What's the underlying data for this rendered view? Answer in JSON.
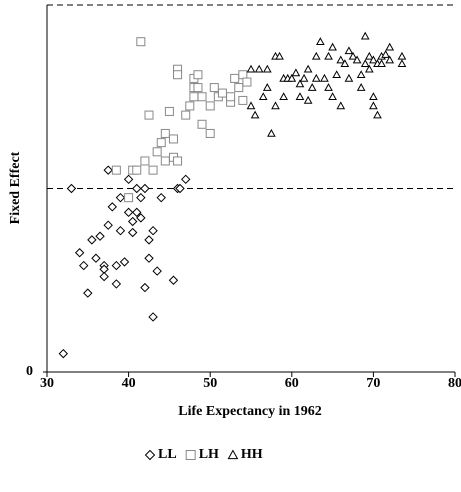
{
  "chart_data": {
    "type": "scatter",
    "xlabel": "Life Expectancy in 1962",
    "ylabel": "Fixed Effect",
    "xlim": [
      30,
      80
    ],
    "xticks": [
      30,
      40,
      50,
      60,
      70,
      80
    ],
    "ylim": [
      0,
      2
    ],
    "yticks": [
      0
    ],
    "hlines": [
      1,
      2
    ],
    "series": [
      {
        "name": "LL",
        "marker": "diamond",
        "color": "#000000",
        "x": [
          32,
          33,
          34,
          34.5,
          35,
          35.5,
          36,
          36.5,
          37,
          37,
          37,
          37.5,
          37.5,
          38,
          38.5,
          38.5,
          39,
          39,
          39.5,
          40,
          40,
          40.5,
          40.5,
          41,
          41,
          41.5,
          41.5,
          42,
          42,
          42.5,
          42.5,
          43,
          43,
          43.5,
          44,
          45.5,
          46,
          46.3,
          47
        ],
        "values": [
          0.1,
          1.0,
          0.65,
          0.58,
          0.43,
          0.72,
          0.62,
          0.74,
          0.58,
          0.56,
          0.52,
          0.8,
          1.1,
          0.9,
          0.58,
          0.48,
          0.77,
          0.95,
          0.6,
          0.87,
          1.05,
          0.82,
          0.76,
          0.87,
          1.0,
          0.84,
          0.95,
          0.46,
          1.0,
          0.72,
          0.62,
          0.3,
          0.77,
          0.55,
          0.95,
          0.5,
          1.0,
          1.0,
          1.05
        ]
      },
      {
        "name": "LH",
        "marker": "square",
        "color": "#888888",
        "x": [
          38.5,
          40,
          40.5,
          41,
          41.5,
          42,
          42.5,
          43,
          43.5,
          44,
          44.5,
          44.5,
          45,
          45.5,
          45.5,
          46,
          46,
          46,
          47,
          47.5,
          48,
          48,
          48,
          48.5,
          48.5,
          49,
          49,
          50,
          50,
          50.5,
          51,
          51.5,
          52.5,
          52.5,
          53,
          53.5,
          54,
          54,
          54.5
        ],
        "values": [
          1.1,
          0.95,
          1.1,
          1.1,
          1.8,
          1.15,
          1.4,
          1.1,
          1.2,
          1.25,
          1.3,
          1.15,
          1.42,
          1.17,
          1.27,
          1.65,
          1.62,
          1.15,
          1.4,
          1.45,
          1.55,
          1.6,
          1.5,
          1.62,
          1.55,
          1.5,
          1.35,
          1.3,
          1.45,
          1.55,
          1.5,
          1.52,
          1.47,
          1.5,
          1.6,
          1.55,
          1.48,
          1.62,
          1.58
        ]
      },
      {
        "name": "HH",
        "marker": "triangle",
        "color": "#000000",
        "x": [
          55,
          55,
          55.5,
          56,
          56.5,
          57,
          57,
          57.5,
          58,
          58,
          58.5,
          59,
          59,
          59.5,
          60,
          60.5,
          61,
          61,
          61.5,
          62,
          62,
          62.5,
          63,
          63,
          63.5,
          64,
          64.5,
          64.5,
          65,
          65,
          65.5,
          66,
          66,
          66.5,
          67,
          67,
          67.5,
          68,
          68.5,
          68.5,
          69,
          69,
          69.5,
          69.5,
          70,
          70,
          70,
          70.5,
          70.5,
          71,
          71,
          71.5,
          72,
          72,
          73.5,
          73.5
        ],
        "values": [
          1.65,
          1.45,
          1.4,
          1.65,
          1.5,
          1.65,
          1.55,
          1.3,
          1.45,
          1.72,
          1.72,
          1.6,
          1.5,
          1.6,
          1.6,
          1.63,
          1.5,
          1.57,
          1.6,
          1.65,
          1.48,
          1.55,
          1.72,
          1.6,
          1.8,
          1.6,
          1.72,
          1.55,
          1.77,
          1.5,
          1.62,
          1.7,
          1.45,
          1.68,
          1.6,
          1.75,
          1.72,
          1.7,
          1.62,
          1.55,
          1.83,
          1.68,
          1.72,
          1.65,
          1.7,
          1.5,
          1.45,
          1.68,
          1.4,
          1.72,
          1.68,
          1.73,
          1.7,
          1.77,
          1.72,
          1.68
        ]
      }
    ]
  }
}
